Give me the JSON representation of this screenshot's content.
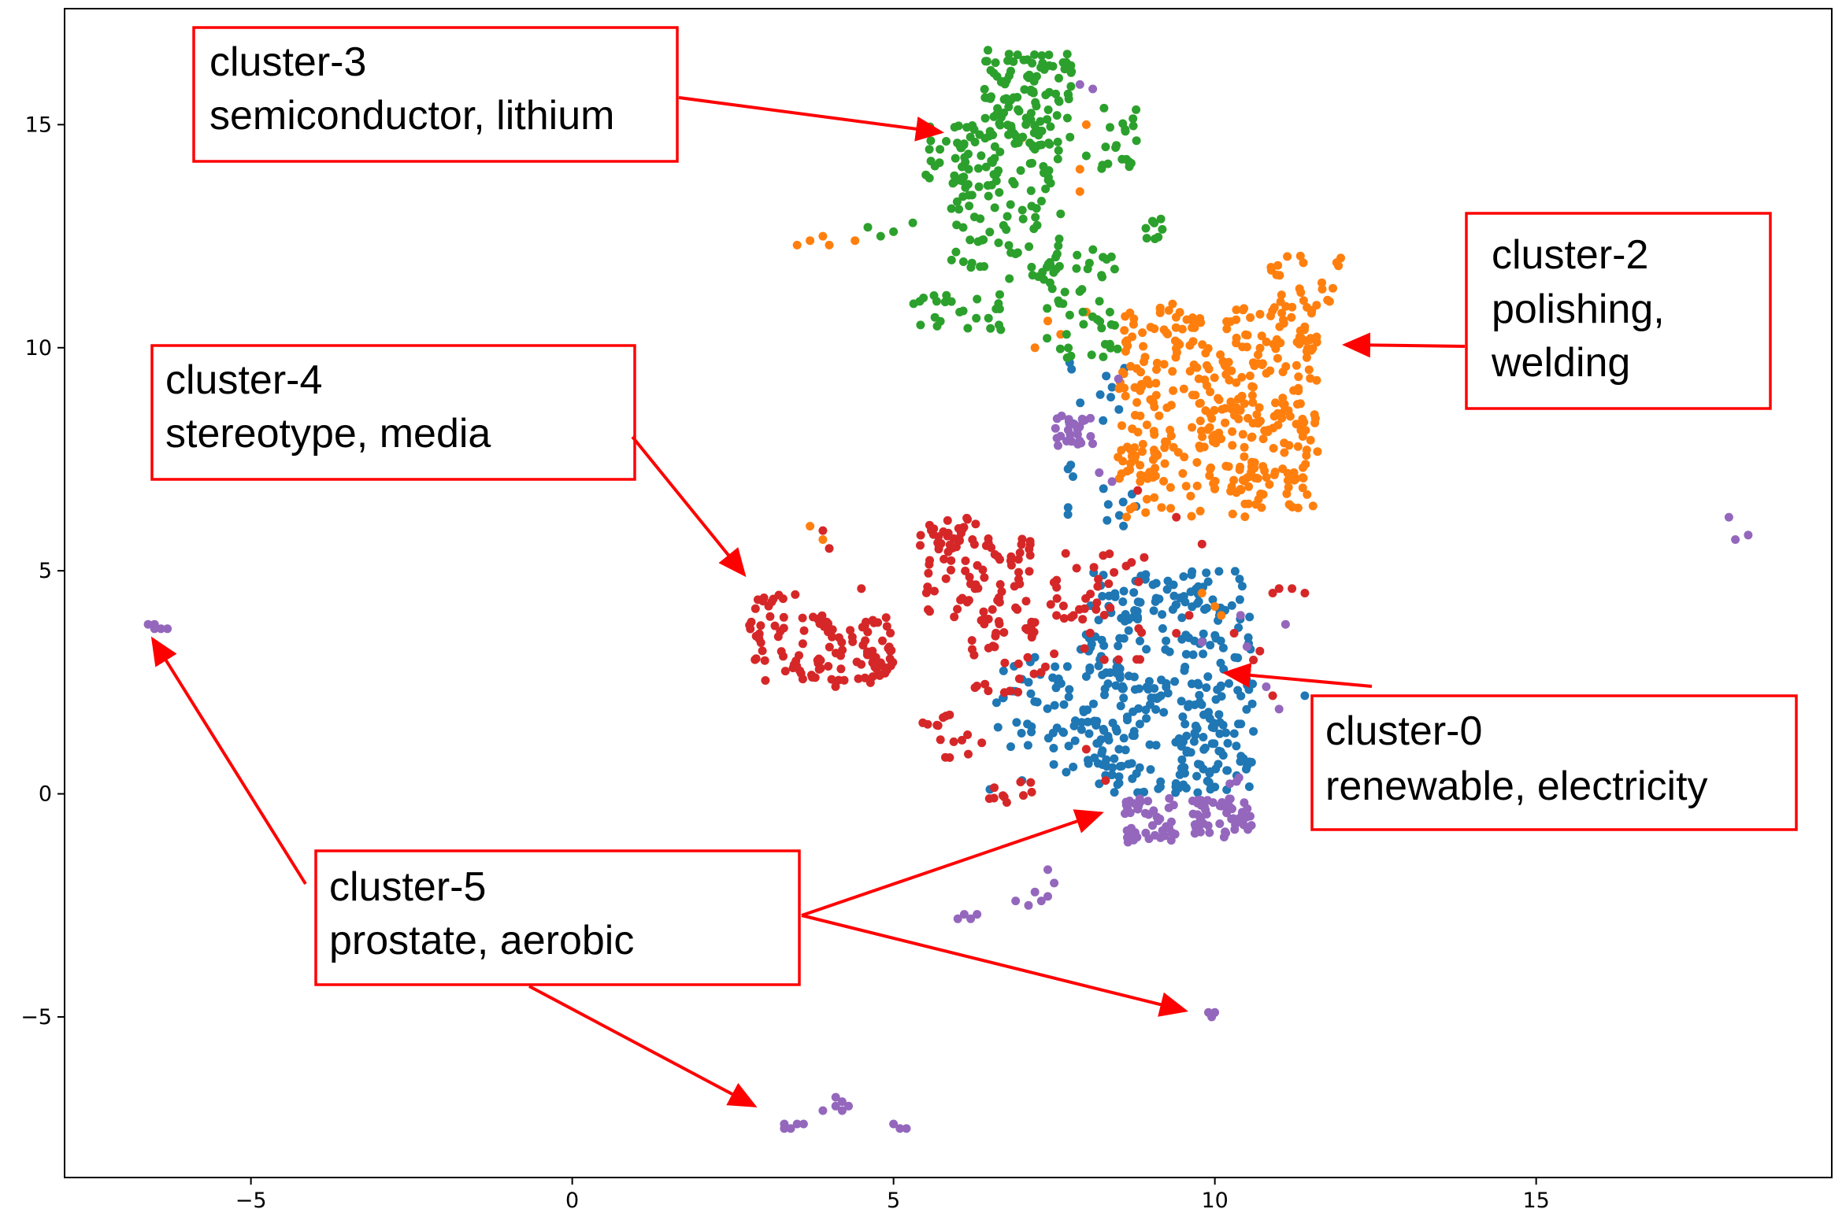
{
  "chart_data": {
    "type": "scatter",
    "title": "",
    "xlabel": "",
    "ylabel": "",
    "xlim": [
      -7.9,
      19.6
    ],
    "ylim": [
      -8.6,
      17.6
    ],
    "grid": false,
    "x_ticks": [
      -5,
      0,
      5,
      10,
      15
    ],
    "y_ticks": [
      -5,
      0,
      5,
      10,
      15
    ],
    "x_tick_labels": [
      "−5",
      "0",
      "5",
      "10",
      "15"
    ],
    "y_tick_labels": [
      "−5",
      "0",
      "5",
      "10",
      "15"
    ],
    "colors": {
      "cluster-0": "#1f77b4",
      "cluster-2": "#ff7f0e",
      "cluster-3": "#2ca02c",
      "cluster-4": "#d62728",
      "cluster-5": "#9467bd",
      "annotation": "#ff0000"
    },
    "series": [
      {
        "name": "cluster-0",
        "color": "#1f77b4",
        "regions": [
          {
            "x": [
              8.0,
              10.6
            ],
            "y": [
              0.0,
              5.0
            ],
            "n": 280
          },
          {
            "x": [
              7.4,
              8.6
            ],
            "y": [
              0.2,
              3.6
            ],
            "n": 60
          },
          {
            "x": [
              6.6,
              7.6
            ],
            "y": [
              1.0,
              3.2
            ],
            "n": 30
          },
          {
            "x": [
              7.7,
              8.9
            ],
            "y": [
              6.0,
              10.0
            ],
            "n": 25
          },
          {
            "x": [
              9.3,
              10.6
            ],
            "y": [
              0.2,
              1.5
            ],
            "n": 20
          }
        ],
        "points": [
          [
            6.5,
            0.1
          ],
          [
            7.0,
            0.3
          ],
          [
            10.6,
            1.4
          ],
          [
            11.4,
            2.2
          ]
        ]
      },
      {
        "name": "cluster-2",
        "color": "#ff7f0e",
        "regions": [
          {
            "x": [
              8.5,
              11.6
            ],
            "y": [
              7.0,
              11.0
            ],
            "n": 330
          },
          {
            "x": [
              8.4,
              10.5
            ],
            "y": [
              6.2,
              8.0
            ],
            "n": 40
          },
          {
            "x": [
              10.3,
              11.6
            ],
            "y": [
              6.4,
              7.1
            ],
            "n": 25
          },
          {
            "x": [
              10.8,
              12.0
            ],
            "y": [
              10.9,
              12.1
            ],
            "n": 25
          }
        ],
        "points": [
          [
            3.5,
            12.3
          ],
          [
            3.7,
            12.4
          ],
          [
            3.9,
            12.5
          ],
          [
            4.0,
            12.3
          ],
          [
            4.4,
            12.4
          ],
          [
            7.0,
            14.7
          ],
          [
            7.9,
            14.0
          ],
          [
            7.9,
            13.5
          ],
          [
            8.0,
            15.0
          ],
          [
            7.2,
            10.0
          ],
          [
            7.6,
            10.3
          ],
          [
            3.7,
            6.0
          ],
          [
            3.9,
            5.7
          ],
          [
            10.0,
            4.2
          ],
          [
            9.8,
            4.5
          ],
          [
            10.1,
            4.0
          ],
          [
            7.4,
            10.6
          ],
          [
            8.0,
            10.8
          ]
        ]
      },
      {
        "name": "cluster-3",
        "color": "#2ca02c",
        "regions": [
          {
            "x": [
              6.4,
              7.8
            ],
            "y": [
              14.5,
              16.7
            ],
            "n": 110
          },
          {
            "x": [
              5.9,
              7.6
            ],
            "y": [
              11.5,
              15.0
            ],
            "n": 110
          },
          {
            "x": [
              5.5,
              6.5
            ],
            "y": [
              13.8,
              15.0
            ],
            "n": 25
          },
          {
            "x": [
              7.3,
              8.5
            ],
            "y": [
              9.7,
              12.2
            ],
            "n": 50
          },
          {
            "x": [
              8.2,
              8.8
            ],
            "y": [
              14.0,
              15.4
            ],
            "n": 20
          },
          {
            "x": [
              5.3,
              6.7
            ],
            "y": [
              10.4,
              11.2
            ],
            "n": 25
          },
          {
            "x": [
              8.9,
              9.2
            ],
            "y": [
              12.4,
              12.9
            ],
            "n": 8
          }
        ],
        "points": [
          [
            4.6,
            12.7
          ],
          [
            4.8,
            12.5
          ],
          [
            5.0,
            12.6
          ],
          [
            5.3,
            12.8
          ],
          [
            7.6,
            13.0
          ],
          [
            8.0,
            14.3
          ]
        ]
      },
      {
        "name": "cluster-4",
        "color": "#d62728",
        "regions": [
          {
            "x": [
              2.7,
              5.0
            ],
            "y": [
              2.4,
              4.0
            ],
            "n": 110
          },
          {
            "x": [
              2.8,
              3.5
            ],
            "y": [
              4.1,
              4.5
            ],
            "n": 10
          },
          {
            "x": [
              5.5,
              7.2
            ],
            "y": [
              3.5,
              5.8
            ],
            "n": 90
          },
          {
            "x": [
              5.4,
              6.5
            ],
            "y": [
              5.5,
              6.2
            ],
            "n": 25
          },
          {
            "x": [
              7.4,
              8.9
            ],
            "y": [
              3.0,
              5.4
            ],
            "n": 40
          },
          {
            "x": [
              6.0,
              7.4
            ],
            "y": [
              2.2,
              3.6
            ],
            "n": 20
          },
          {
            "x": [
              5.1,
              6.4
            ],
            "y": [
              0.8,
              1.8
            ],
            "n": 15
          },
          {
            "x": [
              6.3,
              7.2
            ],
            "y": [
              -0.2,
              0.3
            ],
            "n": 10
          }
        ],
        "points": [
          [
            10.9,
            4.5
          ],
          [
            11.0,
            4.6
          ],
          [
            11.2,
            4.6
          ],
          [
            11.4,
            4.5
          ],
          [
            10.7,
            3.2
          ],
          [
            10.3,
            3.6
          ],
          [
            9.4,
            3.6
          ],
          [
            8.9,
            5.3
          ],
          [
            9.4,
            6.2
          ],
          [
            9.8,
            5.6
          ],
          [
            9.6,
            4.0
          ],
          [
            8.8,
            6.8
          ],
          [
            8.0,
            1.0
          ],
          [
            8.3,
            0.3
          ],
          [
            4.0,
            5.5
          ],
          [
            4.5,
            4.6
          ],
          [
            3.9,
            5.9
          ],
          [
            10.9,
            2.2
          ],
          [
            10.6,
            3.0
          ]
        ]
      },
      {
        "name": "cluster-5",
        "color": "#9467bd",
        "regions": [
          {
            "x": [
              8.6,
              9.4
            ],
            "y": [
              -1.1,
              -0.1
            ],
            "n": 45
          },
          {
            "x": [
              9.6,
              10.6
            ],
            "y": [
              -1.0,
              -0.1
            ],
            "n": 45
          },
          {
            "x": [
              10.1,
              10.5
            ],
            "y": [
              -0.6,
              0.4
            ],
            "n": 10
          },
          {
            "x": [
              7.5,
              8.1
            ],
            "y": [
              7.7,
              8.5
            ],
            "n": 25
          }
        ],
        "points": [
          [
            -6.6,
            3.8
          ],
          [
            -6.5,
            3.8
          ],
          [
            -6.4,
            3.7
          ],
          [
            -6.3,
            3.7
          ],
          [
            -6.5,
            3.7
          ],
          [
            18.0,
            6.2
          ],
          [
            18.1,
            5.7
          ],
          [
            18.3,
            5.8
          ],
          [
            3.3,
            -7.5
          ],
          [
            3.4,
            -7.5
          ],
          [
            3.5,
            -7.4
          ],
          [
            3.3,
            -7.4
          ],
          [
            3.6,
            -7.4
          ],
          [
            3.9,
            -7.1
          ],
          [
            4.1,
            -6.8
          ],
          [
            4.2,
            -6.9
          ],
          [
            4.3,
            -7.0
          ],
          [
            4.2,
            -7.1
          ],
          [
            4.1,
            -7.0
          ],
          [
            5.1,
            -7.5
          ],
          [
            5.2,
            -7.5
          ],
          [
            5.0,
            -7.4
          ],
          [
            6.0,
            -2.8
          ],
          [
            6.2,
            -2.8
          ],
          [
            6.3,
            -2.7
          ],
          [
            6.1,
            -2.7
          ],
          [
            7.1,
            -2.5
          ],
          [
            7.3,
            -2.4
          ],
          [
            7.4,
            -2.3
          ],
          [
            7.2,
            -2.2
          ],
          [
            7.5,
            -2.0
          ],
          [
            7.4,
            -1.7
          ],
          [
            6.9,
            -2.4
          ],
          [
            9.9,
            -4.9
          ],
          [
            10.0,
            -4.9
          ],
          [
            9.95,
            -5.0
          ],
          [
            8.2,
            7.2
          ],
          [
            8.4,
            7.0
          ],
          [
            11.0,
            1.9
          ],
          [
            10.8,
            2.4
          ],
          [
            10.5,
            3.3
          ],
          [
            11.1,
            3.8
          ],
          [
            10.4,
            4.0
          ],
          [
            9.8,
            3.4
          ],
          [
            7.9,
            15.9
          ],
          [
            8.1,
            15.8
          ],
          [
            8.5,
            9.3
          ]
        ]
      }
    ],
    "annotations": [
      {
        "lines": [
          "cluster-3",
          "semiconductor, lithium"
        ]
      },
      {
        "lines": [
          "cluster-2",
          "polishing,",
          "welding"
        ]
      },
      {
        "lines": [
          "cluster-4",
          "stereotype, media"
        ]
      },
      {
        "lines": [
          "cluster-0",
          "renewable, electricity"
        ]
      },
      {
        "lines": [
          "cluster-5",
          "prostate, aerobic"
        ]
      }
    ]
  }
}
